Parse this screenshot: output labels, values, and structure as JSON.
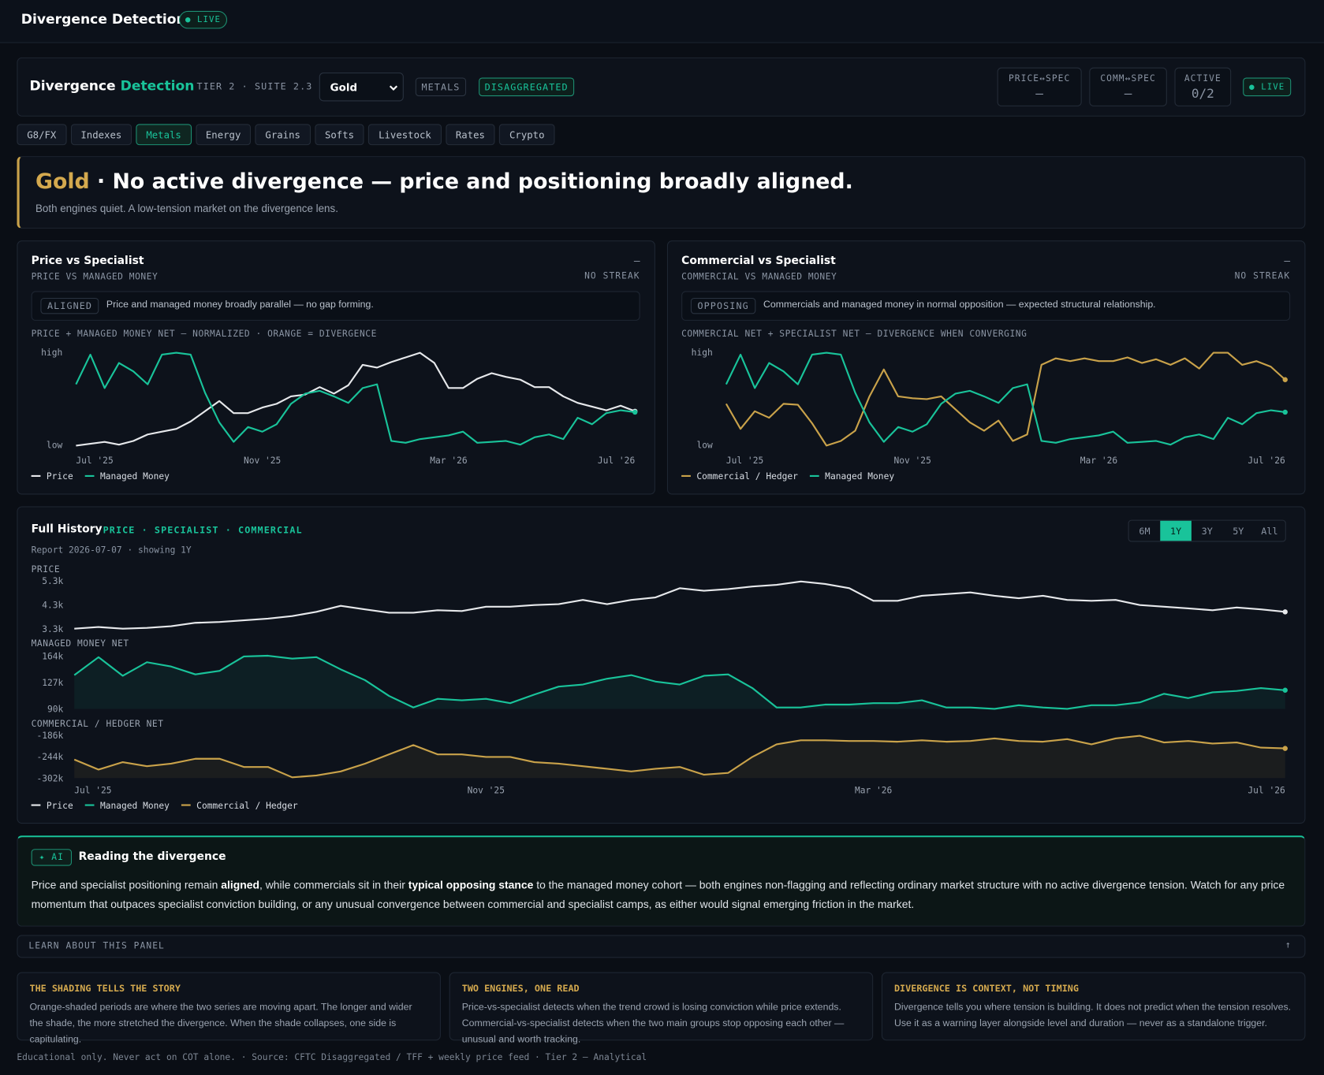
{
  "app_bar": {
    "title": "Divergence Detection",
    "status": "LIVE"
  },
  "header": {
    "title_a": "Divergence",
    "title_b": "Detection",
    "tier": "TIER 2 · SUITE 2.3",
    "asset": "Gold",
    "sector": "METALS",
    "report": "DISAGGREGATED",
    "stats": [
      {
        "label": "PRICE↔SPEC",
        "value": "—"
      },
      {
        "label": "COMM↔SPEC",
        "value": "—"
      },
      {
        "label": "ACTIVE",
        "value": "0/2"
      }
    ],
    "status": "LIVE"
  },
  "tabs": [
    {
      "label": "G8/FX"
    },
    {
      "label": "Indexes"
    },
    {
      "label": "Metals",
      "active": true
    },
    {
      "label": "Energy"
    },
    {
      "label": "Grains"
    },
    {
      "label": "Softs"
    },
    {
      "label": "Livestock"
    },
    {
      "label": "Rates"
    },
    {
      "label": "Crypto"
    }
  ],
  "verdict": {
    "asset": "Gold",
    "headline": "· No active divergence — price and positioning broadly aligned.",
    "sub": "Both engines quiet. A low-tension market on the divergence lens."
  },
  "engines": [
    {
      "title": "Price vs Specialist",
      "subtitle": "PRICE VS MANAGED MONEY",
      "status": "—",
      "streak": "NO STREAK",
      "badge": "ALIGNED",
      "note": "Price and managed money broadly parallel — no gap forming.",
      "chart": {
        "type": "line",
        "caption": "PRICE + MANAGED MONEY NET — NORMALIZED · ORANGE = DIVERGENCE",
        "categories": [
          "Jul '25",
          null,
          null,
          null,
          null,
          null,
          null,
          null,
          null,
          null,
          null,
          null,
          null,
          "Nov '25",
          null,
          null,
          null,
          null,
          null,
          null,
          null,
          null,
          null,
          null,
          null,
          null,
          "Mar '26",
          null,
          null,
          null,
          null,
          null,
          null,
          null,
          null,
          null,
          null,
          null,
          null,
          "Jul '26"
        ],
        "ylim": [
          0,
          100
        ],
        "yticks": [
          {
            "value": 0,
            "label": "low"
          },
          {
            "value": 100,
            "label": "high"
          }
        ],
        "series": [
          {
            "name": "Price",
            "color": "#e6e8eb",
            "values": [
              0,
              2,
              4,
              1,
              5,
              12,
              15,
              18,
              26,
              37,
              48,
              35,
              35,
              41,
              45,
              53,
              55,
              63,
              56,
              65,
              87,
              84,
              90,
              95,
              100,
              89,
              62,
              62,
              72,
              78,
              74,
              71,
              63,
              63,
              53,
              46,
              42,
              38,
              43,
              37
            ]
          },
          {
            "name": "Managed Money",
            "color": "#19c39a",
            "values": [
              66,
              98,
              62,
              89,
              80,
              66,
              98,
              100,
              98,
              57,
              25,
              4,
              20,
              15,
              23,
              45,
              56,
              59,
              53,
              46,
              62,
              66,
              5,
              3,
              7,
              9,
              11,
              15,
              3,
              4,
              5,
              1,
              9,
              12,
              7,
              30,
              23,
              35,
              38,
              36
            ]
          }
        ]
      }
    },
    {
      "title": "Commercial vs Specialist",
      "subtitle": "COMMERCIAL VS MANAGED MONEY",
      "status": "—",
      "streak": "NO STREAK",
      "badge": "OPPOSING",
      "note": "Commercials and managed money in normal opposition — expected structural relationship.",
      "chart": {
        "type": "line",
        "caption": "COMMERCIAL NET + SPECIALIST NET — DIVERGENCE WHEN CONVERGING",
        "categories": [
          "Jul '25",
          null,
          null,
          null,
          null,
          null,
          null,
          null,
          null,
          null,
          null,
          null,
          null,
          "Nov '25",
          null,
          null,
          null,
          null,
          null,
          null,
          null,
          null,
          null,
          null,
          null,
          null,
          "Mar '26",
          null,
          null,
          null,
          null,
          null,
          null,
          null,
          null,
          null,
          null,
          null,
          null,
          "Jul '26"
        ],
        "ylim": [
          0,
          100
        ],
        "yticks": [
          {
            "value": 0,
            "label": "low"
          },
          {
            "value": 100,
            "label": "high"
          }
        ],
        "series": [
          {
            "name": "Commercial / Hedger",
            "color": "#c9a24a",
            "values": [
              45,
              18,
              37,
              30,
              45,
              44,
              24,
              0,
              5,
              16,
              53,
              82,
              53,
              51,
              50,
              53,
              39,
              25,
              16,
              27,
              5,
              12,
              87,
              94,
              91,
              94,
              91,
              91,
              95,
              89,
              93,
              87,
              94,
              83,
              100,
              100,
              87,
              91,
              85,
              71
            ]
          },
          {
            "name": "Managed Money",
            "color": "#19c39a",
            "values": [
              66,
              98,
              62,
              89,
              80,
              66,
              98,
              100,
              98,
              57,
              25,
              4,
              20,
              15,
              23,
              45,
              56,
              59,
              53,
              46,
              62,
              66,
              5,
              3,
              7,
              9,
              11,
              15,
              3,
              4,
              5,
              1,
              9,
              12,
              7,
              30,
              23,
              35,
              38,
              36
            ]
          }
        ]
      }
    }
  ],
  "history": {
    "title": "Full History",
    "tags": "PRICE · SPECIALIST · COMMERCIAL",
    "report": "Report 2026-07-07 · showing 1Y",
    "ranges": [
      {
        "label": "6M"
      },
      {
        "label": "1Y",
        "active": true
      },
      {
        "label": "3Y"
      },
      {
        "label": "5Y"
      },
      {
        "label": "All"
      }
    ],
    "chart": {
      "type": "line",
      "categories": [
        "Jul '25",
        null,
        null,
        null,
        null,
        null,
        null,
        null,
        null,
        null,
        null,
        null,
        null,
        null,
        null,
        null,
        null,
        "Nov '25",
        null,
        null,
        null,
        null,
        null,
        null,
        null,
        null,
        null,
        null,
        null,
        null,
        null,
        null,
        null,
        "Mar '26",
        null,
        null,
        null,
        null,
        null,
        null,
        null,
        null,
        null,
        null,
        null,
        null,
        null,
        null,
        null,
        null,
        "Jul '26"
      ],
      "panels": [
        {
          "label": "PRICE",
          "name": "Price",
          "color": "#e6e8eb",
          "area": false,
          "ylim": [
            3300,
            5300
          ],
          "yticks": [
            {
              "value": 3300,
              "label": "3.3k"
            },
            {
              "value": 4300,
              "label": "4.3k"
            },
            {
              "value": 5300,
              "label": "5.3k"
            }
          ],
          "values": [
            3300,
            3370,
            3300,
            3335,
            3405,
            3545,
            3580,
            3650,
            3720,
            3825,
            4000,
            4250,
            4105,
            3965,
            3965,
            4070,
            4035,
            4215,
            4215,
            4285,
            4320,
            4495,
            4320,
            4495,
            4600,
            4985,
            4880,
            4950,
            5055,
            5125,
            5265,
            5160,
            4985,
            4460,
            4460,
            4670,
            4740,
            4810,
            4670,
            4565,
            4670,
            4495,
            4460,
            4495,
            4285,
            4215,
            4145,
            4070,
            4180,
            4105,
            4000
          ]
        },
        {
          "label": "MANAGED MONEY NET",
          "name": "Managed Money",
          "color": "#19c39a",
          "area": true,
          "ylim": [
            90000,
            164000
          ],
          "yticks": [
            {
              "value": 90000,
              "label": "90k"
            },
            {
              "value": 127000,
              "label": "127k"
            },
            {
              "value": 164000,
              "label": "164k"
            }
          ],
          "values": [
            137000,
            162000,
            136000,
            155000,
            149000,
            138000,
            143000,
            163000,
            164000,
            160000,
            162000,
            145000,
            130000,
            108000,
            92000,
            104000,
            102000,
            104000,
            98000,
            110000,
            121000,
            124000,
            132000,
            137000,
            128000,
            124000,
            136000,
            138000,
            119000,
            92000,
            92000,
            96000,
            96000,
            98000,
            98000,
            102000,
            92000,
            92000,
            90000,
            95000,
            92000,
            90000,
            95000,
            95000,
            99000,
            111000,
            105000,
            113000,
            115000,
            119000,
            116000
          ]
        },
        {
          "label": "COMMERCIAL / HEDGER NET",
          "name": "Commercial / Hedger",
          "color": "#c9a24a",
          "area": true,
          "ylim": [
            -302000,
            -186000
          ],
          "yticks": [
            {
              "value": -302000,
              "label": "-302k"
            },
            {
              "value": -244000,
              "label": "-244k"
            },
            {
              "value": -186000,
              "label": "-186k"
            }
          ],
          "values": [
            -252000,
            -279000,
            -259000,
            -270000,
            -263000,
            -250000,
            -250000,
            -272000,
            -272000,
            -300000,
            -295000,
            -284000,
            -263000,
            -238000,
            -213000,
            -238000,
            -238000,
            -245000,
            -245000,
            -259000,
            -263000,
            -270000,
            -277000,
            -284000,
            -277000,
            -272000,
            -293000,
            -288000,
            -245000,
            -211000,
            -200000,
            -200000,
            -202000,
            -202000,
            -204000,
            -200000,
            -204000,
            -202000,
            -195000,
            -202000,
            -204000,
            -197000,
            -211000,
            -195000,
            -188000,
            -206000,
            -202000,
            -209000,
            -206000,
            -220000,
            -222000
          ]
        }
      ]
    }
  },
  "ai": {
    "badge": "✦ AI",
    "title": "Reading the divergence",
    "body": [
      {
        "text": "Price and specialist positioning remain "
      },
      {
        "text": "aligned",
        "bold": true
      },
      {
        "text": ", while commercials sit in their "
      },
      {
        "text": "typical opposing stance",
        "bold": true
      },
      {
        "text": " to the managed money cohort — both engines non-flagging and reflecting ordinary market structure with no active divergence tension. Watch for any price momentum that outpaces specialist conviction building, or any unusual convergence between commercial and specialist camps, as either would signal emerging friction in the market."
      }
    ]
  },
  "learn": {
    "title": "LEARN ABOUT THIS PANEL",
    "toggle": "↑",
    "cards": [
      {
        "title": "THE SHADING TELLS THE STORY",
        "body": "Orange-shaded periods are where the two series are moving apart. The longer and wider the shade, the more stretched the divergence. When the shade collapses, one side is capitulating."
      },
      {
        "title": "TWO ENGINES, ONE READ",
        "body": "Price-vs-specialist detects when the trend crowd is losing conviction while price extends. Commercial-vs-specialist detects when the two main groups stop opposing each other — unusual and worth tracking."
      },
      {
        "title": "DIVERGENCE IS CONTEXT, NOT TIMING",
        "body": "Divergence tells you where tension is building. It does not predict when the tension resolves. Use it as a warning layer alongside level and duration — never as a standalone trigger."
      }
    ]
  },
  "footer": "Educational only. Never act on COT alone. · Source: CFTC Disaggregated / TFF + weekly price feed · Tier 2 — Analytical"
}
